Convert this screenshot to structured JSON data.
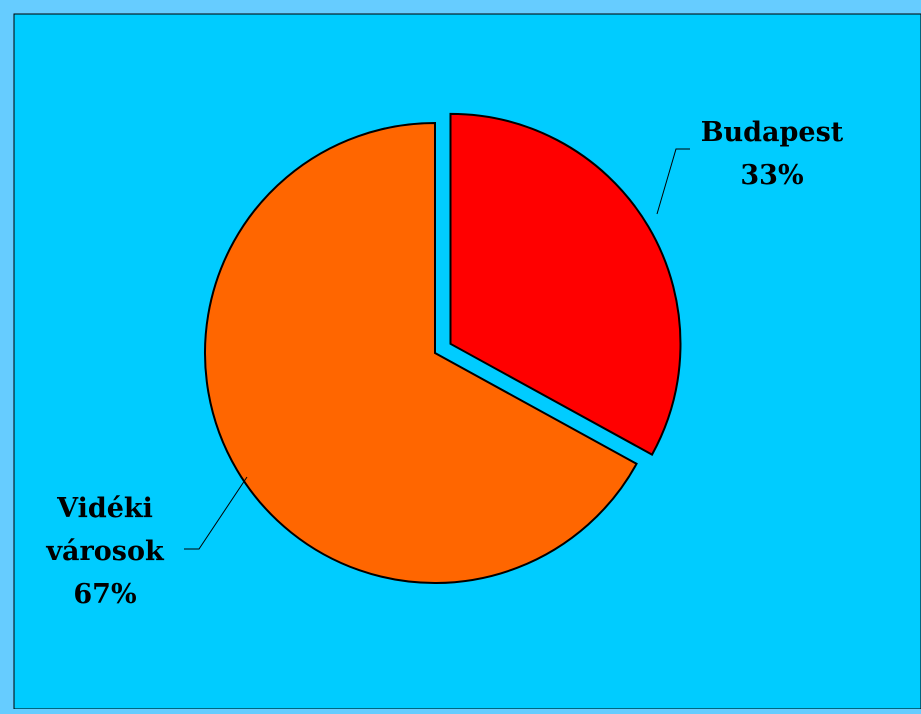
{
  "chart_data": {
    "type": "pie",
    "title": "",
    "slices": [
      {
        "label_lines": [
          "Budapest"
        ],
        "value_label": "33%",
        "value": 33,
        "color": "#ff0000",
        "exploded": true
      },
      {
        "label_lines": [
          "Vidéki",
          "városok"
        ],
        "value_label": "67%",
        "value": 67,
        "color": "#ff6600",
        "exploded": false
      }
    ],
    "start_angle_deg": 0,
    "direction": "clockwise",
    "legend": "none",
    "background_color": "#00ccff",
    "frame_color": "#66ccff"
  }
}
